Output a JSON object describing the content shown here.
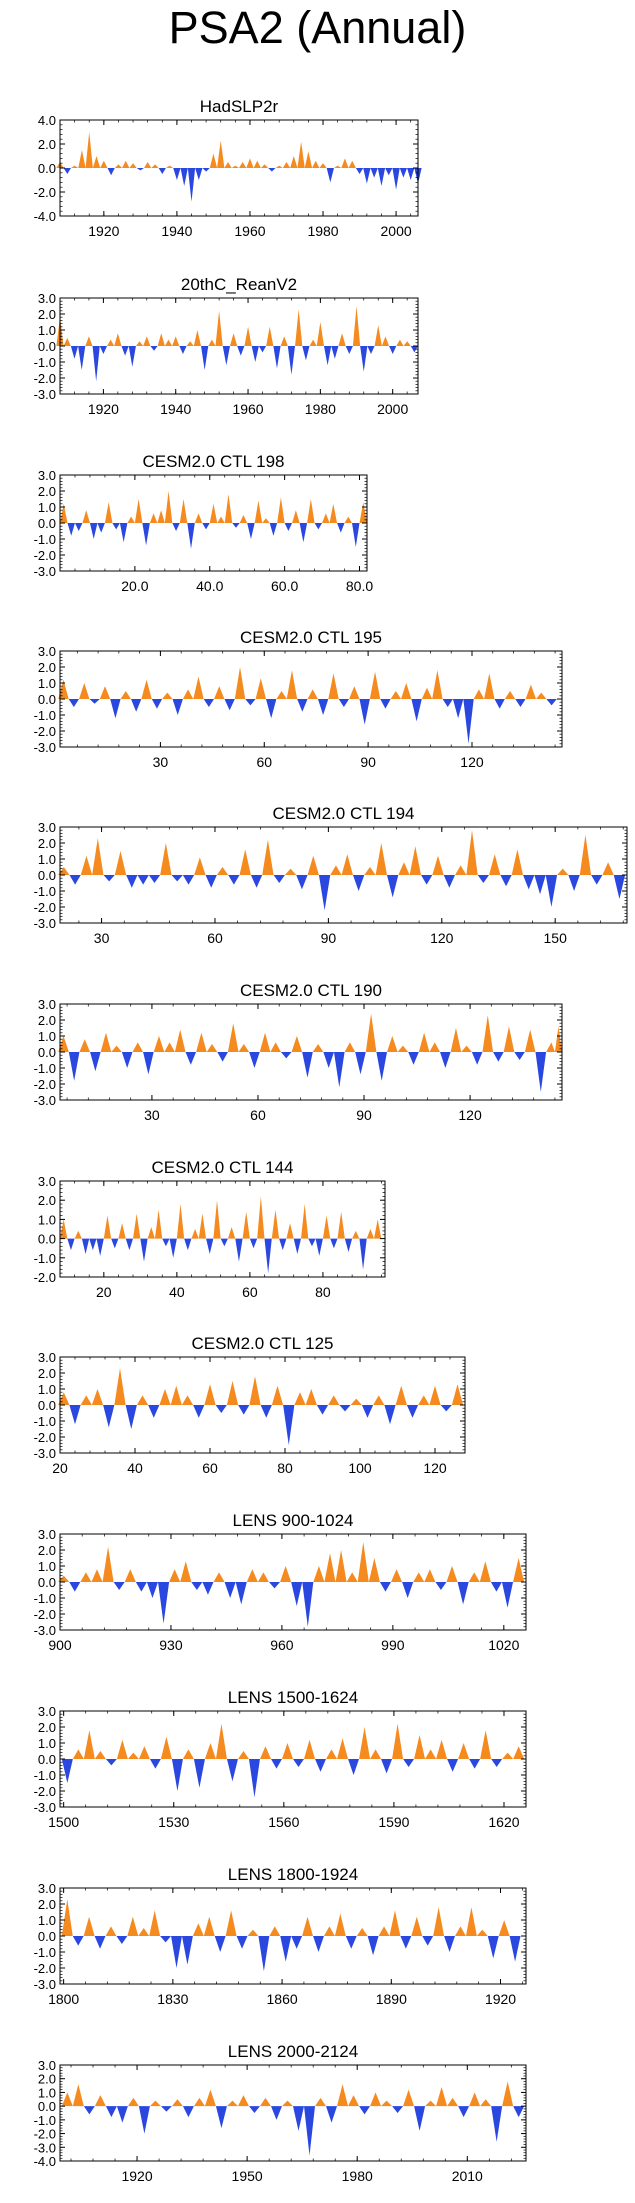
{
  "title": "PSA2 (Annual)",
  "colors": {
    "positive": "#f58a1f",
    "negative": "#2a48e0",
    "axis": "#000000"
  },
  "chart_data": [
    {
      "type": "area",
      "title": "HadSLP2r",
      "xlim": [
        1908,
        2006
      ],
      "ylim": [
        -4.0,
        4.0
      ],
      "yticks": [
        "4.0",
        "2.0",
        "0.0",
        "-2.0",
        "-4.0"
      ],
      "xticks": [
        1920,
        1940,
        1960,
        1980,
        2000
      ],
      "x": [
        1908,
        1910,
        1912,
        1914,
        1916,
        1918,
        1920,
        1922,
        1924,
        1926,
        1928,
        1930,
        1932,
        1934,
        1936,
        1938,
        1940,
        1942,
        1944,
        1946,
        1948,
        1950,
        1952,
        1954,
        1956,
        1958,
        1960,
        1962,
        1964,
        1966,
        1968,
        1970,
        1972,
        1974,
        1976,
        1978,
        1980,
        1982,
        1984,
        1986,
        1988,
        1990,
        1992,
        1994,
        1996,
        1998,
        2000,
        2002,
        2004,
        2006
      ],
      "values": [
        0.5,
        -0.5,
        0.2,
        1.5,
        3.0,
        1.0,
        0.6,
        -0.6,
        0.3,
        0.6,
        0.4,
        -0.2,
        0.5,
        0.3,
        -0.5,
        0.2,
        -1.0,
        -1.5,
        -2.8,
        -1.0,
        -0.3,
        1.2,
        2.3,
        0.5,
        0.2,
        0.5,
        0.8,
        0.6,
        0.3,
        -0.3,
        0.2,
        0.5,
        1.0,
        2.2,
        1.4,
        0.6,
        0.4,
        -1.2,
        0.2,
        0.8,
        0.6,
        -0.5,
        -1.3,
        -0.8,
        -1.5,
        -0.6,
        -1.8,
        -0.8,
        -1.0,
        -1.3
      ]
    },
    {
      "type": "area",
      "title": "20thC_ReanV2",
      "xlim": [
        1908,
        2007
      ],
      "ylim": [
        -3.0,
        3.0
      ],
      "yticks": [
        "3.0",
        "2.0",
        "1.0",
        "0.0",
        "-1.0",
        "-2.0",
        "-3.0"
      ],
      "xticks": [
        1920,
        1940,
        1960,
        1980,
        2000
      ],
      "x": [
        1908,
        1910,
        1912,
        1914,
        1916,
        1918,
        1920,
        1922,
        1924,
        1926,
        1928,
        1930,
        1932,
        1934,
        1936,
        1938,
        1940,
        1942,
        1944,
        1946,
        1948,
        1950,
        1952,
        1954,
        1956,
        1958,
        1960,
        1962,
        1964,
        1966,
        1968,
        1970,
        1972,
        1974,
        1976,
        1978,
        1980,
        1982,
        1984,
        1986,
        1988,
        1990,
        1992,
        1994,
        1996,
        1998,
        2000,
        2002,
        2004,
        2006
      ],
      "values": [
        1.8,
        0.5,
        -0.8,
        -1.5,
        0.6,
        -2.2,
        -0.5,
        0.4,
        0.8,
        -0.6,
        -1.3,
        0.3,
        0.6,
        -0.3,
        0.8,
        0.4,
        0.6,
        -0.5,
        0.3,
        1.0,
        -1.5,
        0.4,
        2.2,
        -1.2,
        0.8,
        -0.6,
        1.2,
        -1.0,
        -0.4,
        1.2,
        -1.4,
        0.6,
        -1.8,
        2.3,
        -0.9,
        0.4,
        1.5,
        -1.2,
        -0.8,
        0.8,
        -0.5,
        2.5,
        -1.6,
        -0.5,
        1.3,
        0.6,
        -0.5,
        0.4,
        0.3,
        -0.4
      ]
    },
    {
      "type": "area",
      "title": "CESM2.0 CTL 198",
      "xlim": [
        0,
        82
      ],
      "ylim": [
        -3.0,
        3.0
      ],
      "yticks": [
        "3.0",
        "2.0",
        "1.0",
        "0.0",
        "-1.0",
        "-2.0",
        "-3.0"
      ],
      "xticks": [
        "20.0",
        "40.0",
        "60.0",
        "80.0"
      ],
      "x": [
        1,
        3,
        5,
        7,
        9,
        11,
        13,
        15,
        17,
        19,
        21,
        23,
        25,
        27,
        29,
        31,
        33,
        35,
        37,
        39,
        41,
        43,
        45,
        47,
        49,
        51,
        53,
        55,
        57,
        59,
        61,
        63,
        65,
        67,
        69,
        71,
        73,
        75,
        77,
        79,
        81
      ],
      "values": [
        1.2,
        -0.8,
        -0.5,
        0.8,
        -1.0,
        -0.6,
        1.3,
        -0.4,
        -1.2,
        0.4,
        1.5,
        -1.4,
        0.6,
        0.8,
        2.0,
        -0.5,
        1.5,
        -1.6,
        0.6,
        -0.4,
        1.2,
        0.4,
        1.8,
        -0.3,
        0.5,
        -1.0,
        1.4,
        0.3,
        -0.8,
        1.6,
        -0.5,
        0.8,
        -1.2,
        1.5,
        -0.4,
        0.6,
        1.2,
        -0.6,
        0.4,
        -1.5,
        1.3
      ]
    },
    {
      "type": "area",
      "title": "CESM2.0 CTL 195",
      "xlim": [
        1,
        146
      ],
      "ylim": [
        -3.0,
        3.0
      ],
      "yticks": [
        "3.0",
        "2.0",
        "1.0",
        "0.0",
        "-1.0",
        "-2.0",
        "-3.0"
      ],
      "xticks": [
        30,
        60,
        90,
        120
      ],
      "x": [
        2,
        5,
        8,
        11,
        14,
        17,
        20,
        23,
        26,
        29,
        32,
        35,
        38,
        41,
        44,
        47,
        50,
        53,
        56,
        59,
        62,
        65,
        68,
        71,
        74,
        77,
        80,
        83,
        86,
        89,
        92,
        95,
        98,
        101,
        104,
        107,
        110,
        113,
        116,
        119,
        122,
        125,
        128,
        131,
        134,
        137,
        140,
        143
      ],
      "values": [
        1.2,
        -0.5,
        1.0,
        -0.3,
        0.8,
        -1.2,
        0.5,
        -0.8,
        1.2,
        -0.6,
        0.4,
        -1.0,
        0.6,
        1.4,
        -0.5,
        0.8,
        -0.7,
        2.0,
        -0.4,
        1.3,
        -1.2,
        0.5,
        1.8,
        -0.8,
        0.6,
        -1.0,
        1.6,
        -0.5,
        0.8,
        -1.6,
        1.7,
        -0.6,
        0.5,
        1.0,
        -1.4,
        0.7,
        1.8,
        -0.5,
        -1.2,
        -2.8,
        0.6,
        1.6,
        -0.6,
        0.5,
        -0.5,
        0.9,
        0.4,
        -0.4
      ]
    },
    {
      "type": "area",
      "title": "CESM2.0 CTL 194",
      "xlim": [
        19,
        169
      ],
      "ylim": [
        -3.0,
        3.0
      ],
      "yticks": [
        "3.0",
        "2.0",
        "1.0",
        "0.0",
        "-1.0",
        "-2.0",
        "-3.0"
      ],
      "xticks": [
        30,
        60,
        90,
        120,
        150
      ],
      "x": [
        20,
        23,
        26,
        29,
        32,
        35,
        38,
        41,
        44,
        47,
        50,
        53,
        56,
        59,
        62,
        65,
        68,
        71,
        74,
        77,
        80,
        83,
        86,
        89,
        92,
        95,
        98,
        101,
        104,
        107,
        110,
        113,
        116,
        119,
        122,
        125,
        128,
        131,
        134,
        137,
        140,
        143,
        146,
        149,
        152,
        155,
        158,
        161,
        164,
        167
      ],
      "values": [
        0.5,
        -0.6,
        1.2,
        2.3,
        -0.4,
        1.5,
        -0.8,
        -0.6,
        -0.5,
        2.0,
        -0.4,
        -0.6,
        1.1,
        -0.8,
        0.5,
        -0.6,
        1.6,
        -0.8,
        2.2,
        -0.5,
        0.4,
        -0.9,
        1.2,
        -2.2,
        0.6,
        1.3,
        -1.0,
        0.5,
        2.0,
        -1.4,
        0.8,
        1.8,
        -0.6,
        1.2,
        -0.8,
        0.6,
        2.8,
        -0.5,
        1.3,
        -0.7,
        1.6,
        -0.9,
        -1.2,
        -2.0,
        0.4,
        -1.0,
        2.5,
        -0.6,
        0.8,
        -1.5
      ]
    },
    {
      "type": "area",
      "title": "CESM2.0 CTL 190",
      "xlim": [
        4,
        146
      ],
      "ylim": [
        -3.0,
        3.0
      ],
      "yticks": [
        "3.0",
        "2.0",
        "1.0",
        "0.0",
        "-1.0",
        "-2.0",
        "-3.0"
      ],
      "xticks": [
        30,
        60,
        90,
        120
      ],
      "x": [
        5,
        8,
        11,
        14,
        17,
        20,
        23,
        26,
        29,
        32,
        35,
        38,
        41,
        44,
        47,
        50,
        53,
        56,
        59,
        62,
        65,
        68,
        71,
        74,
        77,
        80,
        83,
        86,
        89,
        92,
        95,
        98,
        101,
        104,
        107,
        110,
        113,
        116,
        119,
        122,
        125,
        128,
        131,
        134,
        137,
        140,
        143,
        145
      ],
      "values": [
        1.0,
        -1.8,
        0.8,
        -1.2,
        1.2,
        0.4,
        -1.0,
        0.6,
        -1.4,
        1.0,
        0.6,
        1.4,
        -0.8,
        1.2,
        0.5,
        -0.6,
        1.8,
        0.5,
        -1.0,
        1.2,
        0.6,
        -0.4,
        1.0,
        -1.6,
        0.5,
        -1.0,
        -2.2,
        0.6,
        -1.4,
        2.4,
        -1.8,
        1.0,
        0.4,
        -0.8,
        1.2,
        0.6,
        -1.0,
        1.5,
        0.4,
        -0.8,
        2.3,
        -0.6,
        1.6,
        -0.5,
        1.4,
        -2.5,
        0.6,
        1.6
      ]
    },
    {
      "type": "area",
      "title": "CESM2.0 CTL 144",
      "xlim": [
        8,
        97
      ],
      "ylim": [
        -2.0,
        3.0
      ],
      "yticks": [
        "3.0",
        "2.0",
        "1.0",
        "0.0",
        "-1.0",
        "-2.0"
      ],
      "xticks": [
        20,
        40,
        60,
        80
      ],
      "x": [
        9,
        11,
        13,
        15,
        17,
        19,
        21,
        23,
        25,
        27,
        29,
        31,
        33,
        35,
        37,
        39,
        41,
        43,
        45,
        47,
        49,
        51,
        53,
        55,
        57,
        59,
        61,
        63,
        65,
        67,
        69,
        71,
        73,
        75,
        77,
        79,
        81,
        83,
        85,
        87,
        89,
        91,
        93,
        95
      ],
      "values": [
        1.0,
        -0.6,
        0.4,
        -0.8,
        -0.6,
        -0.9,
        1.2,
        -0.5,
        0.8,
        -0.6,
        1.3,
        -1.2,
        0.6,
        1.5,
        -0.4,
        -1.0,
        1.8,
        -0.6,
        0.5,
        1.3,
        -0.8,
        2.0,
        -0.4,
        0.6,
        -1.2,
        1.4,
        -0.5,
        2.2,
        -1.8,
        1.5,
        -0.6,
        0.8,
        -0.8,
        1.8,
        -0.4,
        -0.9,
        1.2,
        -0.5,
        1.4,
        -0.7,
        0.4,
        -1.6,
        0.5,
        1.0
      ]
    },
    {
      "type": "area",
      "title": "CESM2.0 CTL 125",
      "xlim": [
        20,
        128
      ],
      "ylim": [
        -3.0,
        3.0
      ],
      "yticks": [
        "3.0",
        "2.0",
        "1.0",
        "0.0",
        "-1.0",
        "-2.0",
        "-3.0"
      ],
      "xticks": [
        20,
        40,
        60,
        80,
        100,
        120
      ],
      "x": [
        21,
        24,
        27,
        30,
        33,
        36,
        39,
        42,
        45,
        48,
        51,
        54,
        57,
        60,
        63,
        66,
        69,
        72,
        75,
        78,
        81,
        84,
        87,
        90,
        93,
        96,
        99,
        102,
        105,
        108,
        111,
        114,
        117,
        120,
        123,
        126
      ],
      "values": [
        0.8,
        -1.2,
        0.6,
        1.0,
        -1.4,
        2.3,
        -1.5,
        0.6,
        -0.8,
        1.0,
        1.2,
        0.6,
        -0.8,
        1.3,
        -0.5,
        1.5,
        -0.6,
        1.8,
        -0.8,
        1.2,
        -2.5,
        0.8,
        1.0,
        -0.6,
        0.6,
        -0.4,
        0.4,
        -0.8,
        0.6,
        -1.2,
        1.2,
        -0.8,
        0.6,
        1.2,
        -0.4,
        1.3
      ]
    },
    {
      "type": "area",
      "title": "LENS 900-1024",
      "xlim": [
        900,
        1026
      ],
      "ylim": [
        -3.0,
        3.0
      ],
      "yticks": [
        "3.0",
        "2.0",
        "1.0",
        "0.0",
        "-1.0",
        "-2.0",
        "-3.0"
      ],
      "xticks": [
        900,
        930,
        960,
        990,
        1020
      ],
      "x": [
        901,
        904,
        907,
        910,
        913,
        916,
        919,
        922,
        925,
        928,
        931,
        934,
        937,
        940,
        943,
        946,
        949,
        952,
        955,
        958,
        961,
        964,
        967,
        970,
        973,
        976,
        979,
        982,
        985,
        988,
        991,
        994,
        997,
        1000,
        1003,
        1006,
        1009,
        1012,
        1015,
        1018,
        1021,
        1024
      ],
      "values": [
        0.4,
        -0.6,
        0.6,
        0.8,
        2.2,
        -0.5,
        0.8,
        -0.6,
        -1.0,
        -2.6,
        0.8,
        1.3,
        -0.5,
        -0.8,
        0.6,
        -1.0,
        -1.4,
        0.8,
        0.6,
        -0.4,
        1.0,
        -1.5,
        -2.8,
        1.0,
        1.8,
        2.0,
        0.6,
        2.5,
        1.5,
        -0.6,
        0.8,
        -1.0,
        0.6,
        0.8,
        -0.5,
        1.0,
        -1.4,
        0.6,
        1.3,
        -0.6,
        -1.6,
        1.5
      ]
    },
    {
      "type": "area",
      "title": "LENS 1500-1624",
      "xlim": [
        1499,
        1626
      ],
      "ylim": [
        -3.0,
        3.0
      ],
      "yticks": [
        "3.0",
        "2.0",
        "1.0",
        "0.0",
        "-1.0",
        "-2.0",
        "-3.0"
      ],
      "xticks": [
        1500,
        1530,
        1560,
        1590,
        1620
      ],
      "x": [
        1501,
        1504,
        1507,
        1510,
        1513,
        1516,
        1519,
        1522,
        1525,
        1528,
        1531,
        1534,
        1537,
        1540,
        1543,
        1546,
        1549,
        1552,
        1555,
        1558,
        1561,
        1564,
        1567,
        1570,
        1573,
        1576,
        1579,
        1582,
        1585,
        1588,
        1591,
        1594,
        1597,
        1600,
        1603,
        1606,
        1609,
        1612,
        1615,
        1618,
        1621,
        1624
      ],
      "values": [
        -1.5,
        0.6,
        1.8,
        0.5,
        -0.4,
        1.2,
        0.4,
        0.8,
        -0.6,
        1.4,
        -2.0,
        0.6,
        -1.8,
        1.0,
        2.2,
        -1.4,
        0.5,
        -2.4,
        0.8,
        -0.6,
        1.0,
        -0.5,
        1.2,
        -0.8,
        0.6,
        1.3,
        -1.0,
        2.0,
        0.6,
        -0.9,
        2.2,
        -0.5,
        1.5,
        0.6,
        1.2,
        -0.8,
        1.0,
        -0.6,
        1.8,
        -0.5,
        0.4,
        0.8
      ]
    },
    {
      "type": "area",
      "title": "LENS 1800-1924",
      "xlim": [
        1799,
        1927
      ],
      "ylim": [
        -3.0,
        3.0
      ],
      "yticks": [
        "3.0",
        "2.0",
        "1.0",
        "0.0",
        "-1.0",
        "-2.0",
        "-3.0"
      ],
      "xticks": [
        1800,
        1830,
        1860,
        1890,
        1920
      ],
      "x": [
        1801,
        1804,
        1807,
        1810,
        1813,
        1816,
        1819,
        1822,
        1825,
        1828,
        1831,
        1834,
        1837,
        1840,
        1843,
        1846,
        1849,
        1852,
        1855,
        1858,
        1861,
        1864,
        1867,
        1870,
        1873,
        1876,
        1879,
        1882,
        1885,
        1888,
        1891,
        1894,
        1897,
        1900,
        1903,
        1906,
        1909,
        1912,
        1915,
        1918,
        1921,
        1924
      ],
      "values": [
        2.3,
        -0.6,
        1.2,
        -0.8,
        0.6,
        -0.5,
        1.2,
        0.5,
        1.6,
        -0.4,
        -2.0,
        -1.8,
        0.8,
        1.2,
        -1.0,
        1.6,
        -0.8,
        0.4,
        -2.2,
        0.6,
        -1.6,
        -0.8,
        1.2,
        -1.0,
        0.6,
        1.4,
        -0.8,
        0.5,
        -1.2,
        0.6,
        1.6,
        -0.8,
        1.2,
        -0.6,
        1.8,
        -1.0,
        0.6,
        1.8,
        0.4,
        -1.4,
        1.0,
        -1.6
      ]
    },
    {
      "type": "area",
      "title": "LENS 2000-2124",
      "xlim": [
        1899,
        2026
      ],
      "ylim": [
        -4.0,
        3.0
      ],
      "yticks": [
        "3.0",
        "2.0",
        "1.0",
        "0.0",
        "-1.0",
        "-2.0",
        "-3.0",
        "-4.0"
      ],
      "xticks": [
        1920,
        1950,
        1980,
        2010
      ],
      "x": [
        1901,
        1904,
        1907,
        1910,
        1913,
        1916,
        1919,
        1922,
        1925,
        1928,
        1931,
        1934,
        1937,
        1940,
        1943,
        1946,
        1949,
        1952,
        1955,
        1958,
        1961,
        1964,
        1967,
        1970,
        1973,
        1976,
        1979,
        1982,
        1985,
        1988,
        1991,
        1994,
        1997,
        2000,
        2003,
        2006,
        2009,
        2012,
        2015,
        2018,
        2021,
        2024
      ],
      "values": [
        1.0,
        1.6,
        -0.6,
        0.8,
        -0.8,
        -1.2,
        0.6,
        -2.0,
        0.4,
        -0.4,
        0.5,
        -0.8,
        0.6,
        1.2,
        -1.6,
        0.4,
        0.8,
        -0.5,
        0.6,
        -1.0,
        0.4,
        -1.8,
        -3.6,
        0.6,
        -1.2,
        1.6,
        0.8,
        -0.6,
        1.0,
        0.4,
        -0.5,
        1.2,
        -1.8,
        0.4,
        1.4,
        0.6,
        -0.8,
        1.0,
        0.5,
        -2.6,
        1.8,
        -0.8
      ]
    }
  ]
}
